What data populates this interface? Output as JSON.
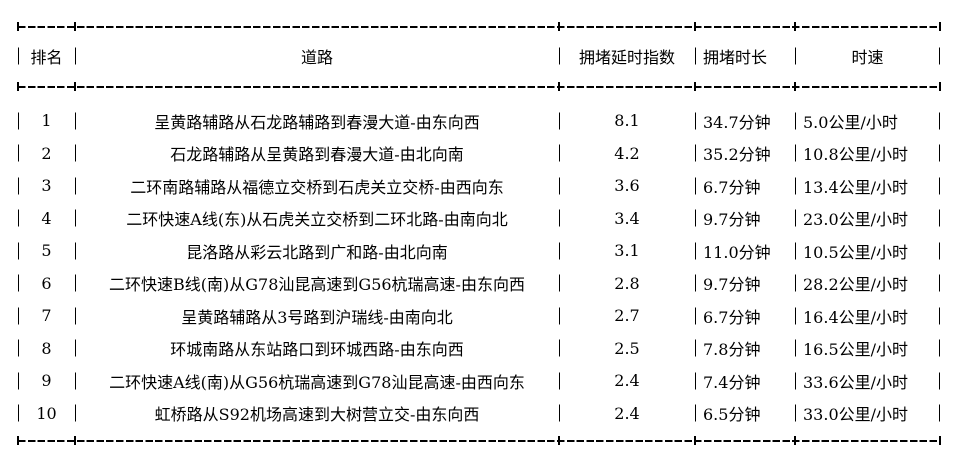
{
  "table": {
    "headers": [
      "排名",
      "道路",
      "拥堵延时指数",
      "拥堵时长",
      "时速"
    ],
    "rows": [
      {
        "rank": "1",
        "road": "呈黄路辅路从石龙路辅路到春漫大道-由东向西",
        "index": "8.1",
        "duration": "34.7分钟",
        "speed": "5.0公里/小时"
      },
      {
        "rank": "2",
        "road": "石龙路辅路从呈黄路到春漫大道-由北向南",
        "index": "4.2",
        "duration": "35.2分钟",
        "speed": "10.8公里/小时"
      },
      {
        "rank": "3",
        "road": "二环南路辅路从福德立交桥到石虎关立交桥-由西向东",
        "index": "3.6",
        "duration": "6.7分钟",
        "speed": "13.4公里/小时"
      },
      {
        "rank": "4",
        "road": "二环快速A线(东)从石虎关立交桥到二环北路-由南向北",
        "index": "3.4",
        "duration": "9.7分钟",
        "speed": "23.0公里/小时"
      },
      {
        "rank": "5",
        "road": "昆洛路从彩云北路到广和路-由北向南",
        "index": "3.1",
        "duration": "11.0分钟",
        "speed": "10.5公里/小时"
      },
      {
        "rank": "6",
        "road": "二环快速B线(南)从G78汕昆高速到G56杭瑞高速-由东向西",
        "index": "2.8",
        "duration": "9.7分钟",
        "speed": "28.2公里/小时"
      },
      {
        "rank": "7",
        "road": "呈黄路辅路从3号路到沪瑞线-由南向北",
        "index": "2.7",
        "duration": "6.7分钟",
        "speed": "16.4公里/小时"
      },
      {
        "rank": "8",
        "road": "环城南路从东站路口到环城西路-由东向西",
        "index": "2.5",
        "duration": "7.8分钟",
        "speed": "16.5公里/小时"
      },
      {
        "rank": "9",
        "road": "二环快速A线(南)从G56杭瑞高速到G78汕昆高速-由西向东",
        "index": "2.4",
        "duration": "7.4分钟",
        "speed": "33.6公里/小时"
      },
      {
        "rank": "10",
        "road": "虹桥路从S92机场高速到大树营立交-由东向西",
        "index": "2.4",
        "duration": "6.5分钟",
        "speed": "33.0公里/小时"
      }
    ],
    "text_color": "#000000",
    "background_color": "#ffffff"
  }
}
